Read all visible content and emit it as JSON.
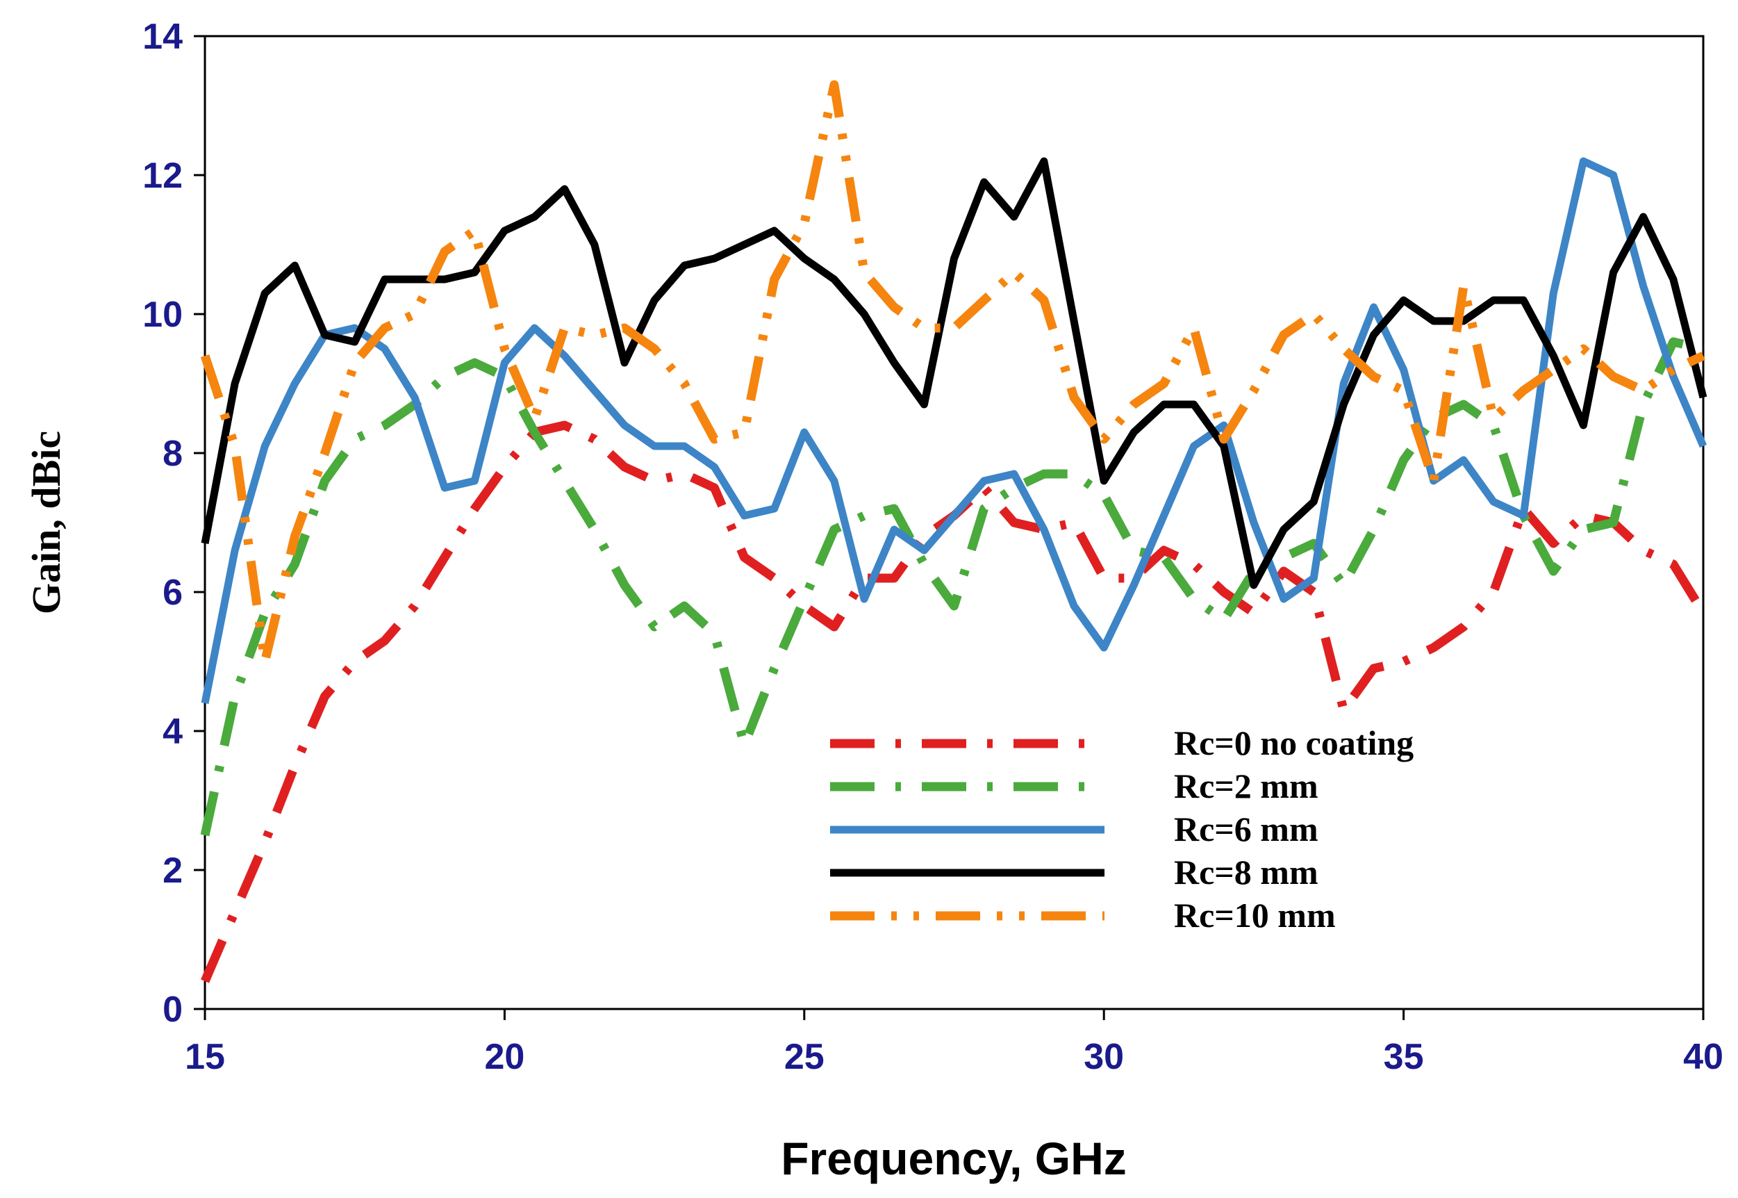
{
  "chart_data": {
    "type": "line",
    "title": "",
    "xlabel": "Frequency, GHz",
    "ylabel": "Gain, dBic",
    "xlim": [
      15,
      40
    ],
    "ylim": [
      0,
      14
    ],
    "xticks": [
      15,
      20,
      25,
      30,
      35,
      40
    ],
    "yticks": [
      0,
      2,
      4,
      6,
      8,
      10,
      12,
      14
    ],
    "grid": false,
    "legend_position": "bottom-center",
    "x": [
      15,
      15.5,
      16,
      16.5,
      17,
      17.5,
      18,
      18.5,
      19,
      19.5,
      20,
      20.5,
      21,
      21.5,
      22,
      22.5,
      23,
      23.5,
      24,
      24.5,
      25,
      25.5,
      26,
      26.5,
      27,
      27.5,
      28,
      28.5,
      29,
      29.5,
      30,
      30.5,
      31,
      31.5,
      32,
      32.5,
      33,
      33.5,
      34,
      34.5,
      35,
      35.5,
      36,
      36.5,
      37,
      37.5,
      38,
      38.5,
      39,
      39.5,
      40
    ],
    "series": [
      {
        "name": "Rc=0 no coating",
        "color": "#e02020",
        "style": "dashdot",
        "values": [
          0.4,
          1.4,
          2.4,
          3.5,
          4.5,
          5.0,
          5.3,
          5.8,
          6.5,
          7.2,
          7.8,
          8.3,
          8.4,
          8.2,
          7.8,
          7.6,
          7.7,
          7.5,
          6.5,
          6.2,
          5.8,
          5.5,
          6.2,
          6.2,
          6.8,
          7.1,
          7.5,
          7.0,
          6.9,
          7.0,
          6.2,
          6.2,
          6.6,
          6.4,
          6.0,
          5.7,
          6.3,
          6.0,
          4.3,
          4.9,
          5.0,
          5.2,
          5.5,
          6.0,
          7.2,
          6.7,
          7.1,
          7.0,
          6.6,
          6.4,
          5.7
        ]
      },
      {
        "name": "Rc=2 mm",
        "color": "#4aaa3c",
        "style": "dashdot",
        "values": [
          2.5,
          4.5,
          5.7,
          6.4,
          7.6,
          8.2,
          8.4,
          8.7,
          9.1,
          9.3,
          9.1,
          8.3,
          7.6,
          6.9,
          6.1,
          5.5,
          5.8,
          5.4,
          3.8,
          4.9,
          5.9,
          6.9,
          7.1,
          7.2,
          6.4,
          5.8,
          7.2,
          7.5,
          7.7,
          7.7,
          7.4,
          6.6,
          6.5,
          5.9,
          5.6,
          6.3,
          6.5,
          6.7,
          6.1,
          6.9,
          7.9,
          8.5,
          8.7,
          8.4,
          7.1,
          6.3,
          6.9,
          7.0,
          8.7,
          9.6,
          9.5
        ]
      },
      {
        "name": "Rc=6 mm",
        "color": "#3d85c6",
        "style": "solid",
        "values": [
          4.4,
          6.6,
          8.1,
          9.0,
          9.7,
          9.8,
          9.5,
          8.8,
          7.5,
          7.6,
          9.3,
          9.8,
          9.4,
          8.9,
          8.4,
          8.1,
          8.1,
          7.8,
          7.1,
          7.2,
          8.3,
          7.6,
          5.9,
          6.9,
          6.6,
          7.1,
          7.6,
          7.7,
          6.9,
          5.8,
          5.2,
          6.1,
          7.1,
          8.1,
          8.4,
          7.0,
          5.9,
          6.2,
          9.0,
          10.1,
          9.2,
          7.6,
          7.9,
          7.3,
          7.1,
          10.3,
          12.2,
          12.0,
          10.4,
          9.1,
          8.1
        ]
      },
      {
        "name": "Rc=8 mm",
        "color": "#000000",
        "style": "solid",
        "values": [
          6.7,
          9.0,
          10.3,
          10.7,
          9.7,
          9.6,
          10.5,
          10.5,
          10.5,
          10.6,
          11.2,
          11.4,
          11.8,
          11.0,
          9.3,
          10.2,
          10.7,
          10.8,
          11.0,
          11.2,
          10.8,
          10.5,
          10.0,
          9.3,
          8.7,
          10.8,
          11.9,
          11.4,
          12.2,
          9.9,
          7.6,
          8.3,
          8.7,
          8.7,
          8.1,
          6.1,
          6.9,
          7.3,
          8.7,
          9.7,
          10.2,
          9.9,
          9.9,
          10.2,
          10.2,
          9.4,
          8.4,
          10.6,
          11.4,
          10.5,
          8.8
        ]
      },
      {
        "name": "Rc=10 mm",
        "color": "#f5850f",
        "style": "dashdotdot",
        "values": [
          9.4,
          8.1,
          5.0,
          6.8,
          8.0,
          9.3,
          9.8,
          10.0,
          10.9,
          11.2,
          9.5,
          8.5,
          9.8,
          9.7,
          9.8,
          9.5,
          9.0,
          8.2,
          8.3,
          10.5,
          11.3,
          13.3,
          10.6,
          10.1,
          9.8,
          9.8,
          10.2,
          10.6,
          10.2,
          8.8,
          8.2,
          8.7,
          9.0,
          9.8,
          8.2,
          8.9,
          9.7,
          10.0,
          9.5,
          9.1,
          8.9,
          7.6,
          10.4,
          8.5,
          8.9,
          9.2,
          9.5,
          9.1,
          8.9,
          9.2,
          9.4
        ]
      }
    ]
  }
}
